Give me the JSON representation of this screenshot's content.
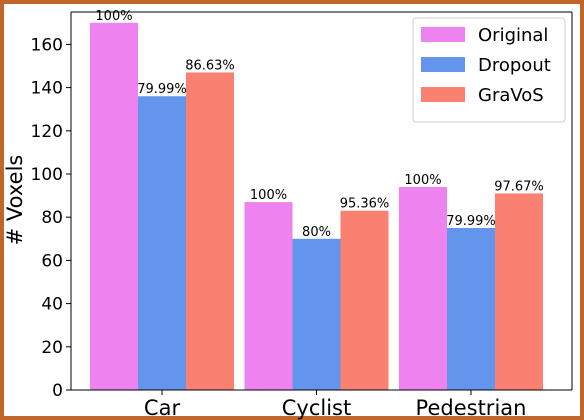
{
  "chart_data": {
    "type": "bar",
    "title": "",
    "xlabel": "",
    "ylabel": "# Voxels",
    "ylim": [
      0,
      175
    ],
    "yticks": [
      0,
      20,
      40,
      60,
      80,
      100,
      120,
      140,
      160
    ],
    "categories": [
      "Car",
      "Cyclist",
      "Pedestrian"
    ],
    "series": [
      {
        "name": "Original",
        "color": "#ee82ee",
        "values": [
          170,
          87,
          94
        ],
        "labels": [
          "100%",
          "100%",
          "100%"
        ]
      },
      {
        "name": "Dropout",
        "color": "#6495ed",
        "values": [
          136,
          70,
          75
        ],
        "labels": [
          "79.99%",
          "80%",
          "79.99%"
        ]
      },
      {
        "name": "GraVoS",
        "color": "#fa8072",
        "values": [
          147,
          83,
          91
        ],
        "labels": [
          "86.63%",
          "95.36%",
          "97.67%"
        ]
      }
    ],
    "legend_position": "top-right",
    "grid": false
  },
  "colors": {
    "frame_border": "#c0662a",
    "axis": "#000000"
  }
}
